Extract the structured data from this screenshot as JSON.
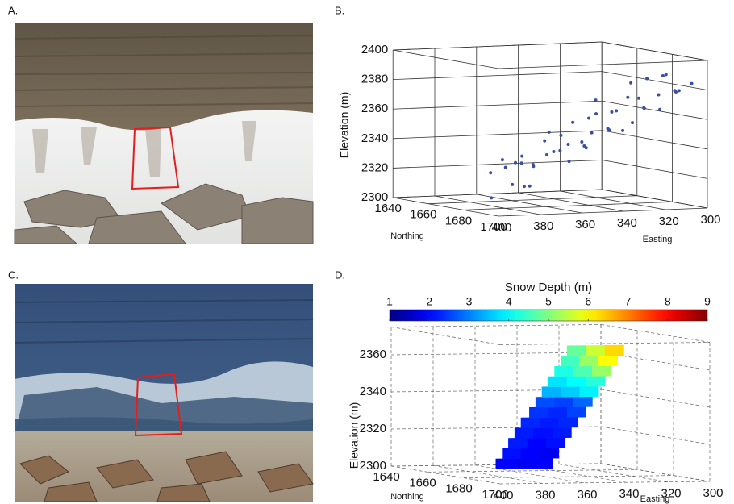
{
  "panel_labels": [
    "A.",
    "B.",
    "C.",
    "D."
  ],
  "chart_data": [
    {
      "type": "scatter3d",
      "xlabel": "Easting",
      "ylabel": "Northing",
      "zlabel": "Elevation (m)",
      "x": [
        395,
        392,
        390,
        388,
        386,
        384,
        382,
        380,
        378,
        376,
        374,
        372,
        370,
        368,
        366,
        364,
        362,
        360,
        358,
        356,
        354,
        352,
        350,
        348,
        346,
        344,
        342,
        340,
        338,
        336,
        334,
        332,
        330,
        328,
        326,
        324,
        322,
        320,
        318,
        316,
        314,
        312,
        310,
        308,
        306,
        305,
        386,
        350
      ],
      "y": [
        1690,
        1686,
        1696,
        1688,
        1698,
        1685,
        1692,
        1694,
        1687,
        1699,
        1689,
        1693,
        1684,
        1697,
        1691,
        1686,
        1695,
        1688,
        1700,
        1690,
        1685,
        1696,
        1692,
        1687,
        1698,
        1689,
        1694,
        1684,
        1697,
        1691,
        1686,
        1699,
        1693,
        1688,
        1695,
        1685,
        1690,
        1696,
        1687,
        1692,
        1698,
        1689,
        1694,
        1686,
        1691,
        1697,
        1693,
        1688
      ],
      "z": [
        2310,
        2326,
        2320,
        2335,
        2319,
        2329,
        2338,
        2318,
        2332,
        2340,
        2330,
        2348,
        2330,
        2342,
        2340,
        2352,
        2334,
        2350,
        2344,
        2359,
        2343,
        2353,
        2362,
        2342,
        2356,
        2364,
        2354,
        2372,
        2354,
        2366,
        2364,
        2376,
        2358,
        2374,
        2368,
        2383,
        2367,
        2377,
        2386,
        2366,
        2380,
        2388,
        2378,
        2388,
        2378,
        2384,
        2334,
        2345
      ],
      "color": "#3a4fa0",
      "xlim": [
        300,
        400
      ],
      "ylim": [
        1640,
        1700
      ],
      "zlim": [
        2300,
        2400
      ],
      "xticks": [
        400,
        380,
        360,
        340,
        320,
        300
      ],
      "yticks": [
        1640,
        1660,
        1680,
        1700
      ],
      "zticks": [
        2300,
        2320,
        2340,
        2360,
        2380,
        2400
      ],
      "grid": "solid"
    },
    {
      "type": "surface3d",
      "xlabel": "Easting",
      "ylabel": "Northing",
      "zlabel": "Elevation (m)",
      "colorbar_title": "Snow Depth (m)",
      "colormap": "jet",
      "clim": [
        1,
        9
      ],
      "cticks": [
        1,
        2,
        3,
        4,
        5,
        6,
        7,
        8,
        9
      ],
      "elevation_edges": [
        2308,
        2313.5,
        2319,
        2324.5,
        2330,
        2335.5,
        2341,
        2346.5,
        2352,
        2357.5,
        2363,
        2368.5,
        2374
      ],
      "easting_start": [
        402,
        399,
        396,
        393,
        390,
        386,
        383,
        380,
        377,
        374,
        371,
        368
      ],
      "easting_end": [
        375,
        372,
        369,
        366,
        363,
        359,
        356,
        353,
        350,
        347,
        344,
        341
      ],
      "values": [
        [
          2.0,
          1.9,
          2.0
        ],
        [
          2.1,
          2.0,
          1.9
        ],
        [
          2.2,
          2.0,
          2.1
        ],
        [
          2.2,
          2.1,
          2.2
        ],
        [
          2.3,
          2.2,
          2.3
        ],
        [
          2.4,
          2.3,
          2.5
        ],
        [
          2.6,
          2.5,
          2.8
        ],
        [
          3.4,
          3.6,
          3.9
        ],
        [
          3.8,
          4.0,
          4.3
        ],
        [
          4.2,
          4.6,
          5.2
        ],
        [
          4.5,
          5.2,
          6.0
        ],
        [
          4.8,
          5.6,
          6.3
        ]
      ],
      "xlim": [
        300,
        400
      ],
      "ylim": [
        1640,
        1700
      ],
      "zlim": [
        2300,
        2375
      ],
      "xticks": [
        400,
        380,
        360,
        340,
        320,
        300
      ],
      "yticks": [
        1640,
        1660,
        1680,
        1700
      ],
      "zticks": [
        2300,
        2320,
        2340,
        2360
      ],
      "grid": "dashed"
    }
  ]
}
